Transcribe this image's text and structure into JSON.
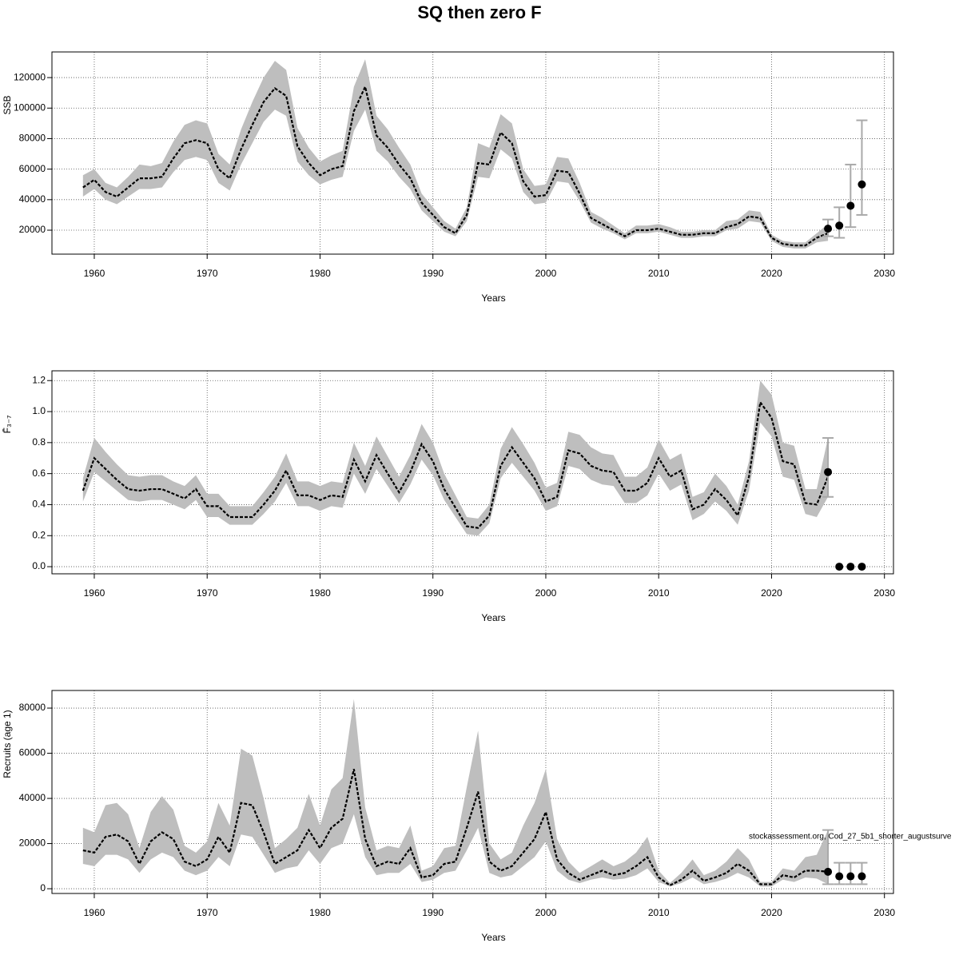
{
  "title": "SQ then zero F",
  "chart_data": [
    {
      "type": "line",
      "xlabel": "Years",
      "ylabel": "SSB",
      "grid": true,
      "color": "#000000",
      "band_color": "#bebebe",
      "errorbar_color": "#a9a9a9",
      "xlim": [
        1956.25,
        2030.8
      ],
      "xticks": [
        1960,
        1970,
        1980,
        1990,
        2000,
        2010,
        2020,
        2030
      ],
      "ylim": [
        4300,
        136800
      ],
      "yticks": [
        20000,
        40000,
        60000,
        80000,
        100000,
        120000
      ],
      "x": [
        1959,
        1960,
        1961,
        1962,
        1963,
        1964,
        1965,
        1966,
        1967,
        1968,
        1969,
        1970,
        1971,
        1972,
        1973,
        1974,
        1975,
        1976,
        1977,
        1978,
        1979,
        1980,
        1981,
        1982,
        1983,
        1984,
        1985,
        1986,
        1987,
        1988,
        1989,
        1990,
        1991,
        1992,
        1993,
        1994,
        1995,
        1996,
        1997,
        1998,
        1999,
        2000,
        2001,
        2002,
        2003,
        2004,
        2005,
        2006,
        2007,
        2008,
        2009,
        2010,
        2011,
        2012,
        2013,
        2014,
        2015,
        2016,
        2017,
        2018,
        2019,
        2020,
        2021,
        2022,
        2023,
        2024,
        2025
      ],
      "values": [
        48000,
        53000,
        45000,
        42000,
        48000,
        54000,
        54000,
        55000,
        67000,
        77000,
        79000,
        77000,
        60000,
        54000,
        73000,
        89000,
        104000,
        113000,
        108000,
        75000,
        64000,
        56000,
        60000,
        62000,
        98000,
        114000,
        82000,
        74000,
        63000,
        54000,
        38000,
        30000,
        22000,
        18000,
        30000,
        64000,
        63000,
        84000,
        77000,
        52000,
        42000,
        43000,
        59000,
        58000,
        44000,
        28000,
        24000,
        20000,
        16000,
        20000,
        20000,
        21000,
        19000,
        17000,
        17000,
        18000,
        18000,
        22000,
        24000,
        29000,
        28000,
        15000,
        11000,
        10000,
        10000,
        15000,
        18000
      ],
      "lower": [
        42000,
        47000,
        40000,
        37000,
        42000,
        47000,
        47000,
        48000,
        58000,
        66000,
        68000,
        66000,
        51000,
        46000,
        63000,
        77000,
        91000,
        99000,
        95000,
        65000,
        56000,
        50000,
        53000,
        55000,
        85000,
        99000,
        72000,
        65000,
        55000,
        47000,
        33000,
        26000,
        19000,
        16000,
        26000,
        55000,
        54000,
        73000,
        67000,
        45000,
        37000,
        38000,
        52000,
        51000,
        39000,
        25000,
        21000,
        18000,
        14000,
        18000,
        18000,
        19000,
        17000,
        15000,
        15000,
        16000,
        16000,
        20000,
        21000,
        26000,
        25000,
        13000,
        9000,
        8000,
        8000,
        12000,
        13000
      ],
      "upper": [
        56000,
        60000,
        51000,
        48000,
        55000,
        63000,
        62000,
        64000,
        78000,
        89000,
        92000,
        90000,
        70000,
        63000,
        86000,
        104000,
        120000,
        131000,
        125000,
        87000,
        74000,
        65000,
        69000,
        72000,
        114000,
        132000,
        95000,
        86000,
        74000,
        63000,
        44000,
        35000,
        26000,
        21000,
        35000,
        77000,
        74000,
        96000,
        90000,
        60000,
        49000,
        50000,
        68000,
        67000,
        51000,
        32000,
        28000,
        23000,
        18000,
        23000,
        23000,
        24000,
        22000,
        19000,
        19000,
        20000,
        20000,
        26000,
        27000,
        33000,
        32000,
        17000,
        13000,
        12000,
        12000,
        18000,
        24000
      ],
      "forecast": {
        "x": [
          2025,
          2026,
          2027,
          2028
        ],
        "values": [
          21000,
          23000,
          36000,
          50000
        ],
        "lower": [
          16000,
          15000,
          22000,
          30000
        ],
        "upper": [
          27000,
          35000,
          63000,
          92000
        ]
      }
    },
    {
      "type": "line",
      "xlabel": "Years",
      "ylabel": "F̄₃₋₇",
      "grid": true,
      "color": "#000000",
      "band_color": "#bebebe",
      "errorbar_color": "#a9a9a9",
      "xlim": [
        1956.25,
        2030.8
      ],
      "xticks": [
        1960,
        1970,
        1980,
        1990,
        2000,
        2010,
        2020,
        2030
      ],
      "ylim": [
        -0.046,
        1.263
      ],
      "yticks": [
        {
          "value": 0,
          "label": "0.0"
        },
        0.2,
        0.4,
        0.6,
        0.8,
        {
          "value": 1,
          "label": "1.0"
        },
        1.2
      ],
      "x": [
        1959,
        1960,
        1961,
        1962,
        1963,
        1964,
        1965,
        1966,
        1967,
        1968,
        1969,
        1970,
        1971,
        1972,
        1973,
        1974,
        1975,
        1976,
        1977,
        1978,
        1979,
        1980,
        1981,
        1982,
        1983,
        1984,
        1985,
        1986,
        1987,
        1988,
        1989,
        1990,
        1991,
        1992,
        1993,
        1994,
        1995,
        1996,
        1997,
        1998,
        1999,
        2000,
        2001,
        2002,
        2003,
        2004,
        2005,
        2006,
        2007,
        2008,
        2009,
        2010,
        2011,
        2012,
        2013,
        2014,
        2015,
        2016,
        2017,
        2018,
        2019,
        2020,
        2021,
        2022,
        2023,
        2024,
        2025
      ],
      "values": [
        0.49,
        0.7,
        0.63,
        0.56,
        0.5,
        0.49,
        0.5,
        0.5,
        0.47,
        0.44,
        0.5,
        0.39,
        0.39,
        0.32,
        0.32,
        0.32,
        0.4,
        0.49,
        0.62,
        0.46,
        0.46,
        0.43,
        0.46,
        0.45,
        0.69,
        0.55,
        0.72,
        0.6,
        0.48,
        0.61,
        0.79,
        0.68,
        0.5,
        0.38,
        0.26,
        0.25,
        0.33,
        0.65,
        0.77,
        0.67,
        0.57,
        0.42,
        0.45,
        0.75,
        0.73,
        0.65,
        0.62,
        0.61,
        0.49,
        0.49,
        0.54,
        0.7,
        0.58,
        0.62,
        0.37,
        0.4,
        0.5,
        0.43,
        0.33,
        0.58,
        1.06,
        0.96,
        0.68,
        0.66,
        0.41,
        0.4,
        0.58
      ],
      "lower": [
        0.42,
        0.61,
        0.55,
        0.49,
        0.43,
        0.42,
        0.43,
        0.43,
        0.4,
        0.37,
        0.43,
        0.32,
        0.32,
        0.27,
        0.27,
        0.27,
        0.34,
        0.42,
        0.54,
        0.39,
        0.39,
        0.36,
        0.39,
        0.38,
        0.6,
        0.47,
        0.63,
        0.52,
        0.41,
        0.53,
        0.69,
        0.59,
        0.43,
        0.32,
        0.21,
        0.2,
        0.28,
        0.57,
        0.67,
        0.58,
        0.49,
        0.36,
        0.39,
        0.65,
        0.63,
        0.56,
        0.53,
        0.52,
        0.41,
        0.41,
        0.46,
        0.6,
        0.49,
        0.53,
        0.3,
        0.34,
        0.42,
        0.36,
        0.27,
        0.49,
        0.93,
        0.84,
        0.58,
        0.56,
        0.34,
        0.32,
        0.45
      ],
      "upper": [
        0.57,
        0.83,
        0.74,
        0.66,
        0.59,
        0.58,
        0.59,
        0.59,
        0.55,
        0.52,
        0.59,
        0.47,
        0.47,
        0.39,
        0.39,
        0.39,
        0.48,
        0.58,
        0.73,
        0.55,
        0.55,
        0.52,
        0.55,
        0.54,
        0.8,
        0.65,
        0.84,
        0.71,
        0.58,
        0.72,
        0.92,
        0.8,
        0.6,
        0.46,
        0.32,
        0.31,
        0.4,
        0.76,
        0.9,
        0.79,
        0.67,
        0.51,
        0.54,
        0.87,
        0.85,
        0.77,
        0.73,
        0.72,
        0.58,
        0.58,
        0.64,
        0.82,
        0.69,
        0.73,
        0.45,
        0.48,
        0.6,
        0.52,
        0.4,
        0.68,
        1.2,
        1.11,
        0.8,
        0.78,
        0.5,
        0.5,
        0.83
      ],
      "forecast": {
        "x": [
          2025,
          2026,
          2027,
          2028
        ],
        "values": [
          0.61,
          0,
          0,
          0
        ],
        "lower": [
          0.45,
          null,
          null,
          null
        ],
        "upper": [
          0.83,
          null,
          null,
          null
        ]
      }
    },
    {
      "type": "line",
      "xlabel": "Years",
      "ylabel": "Recruits (age 1)",
      "grid": true,
      "color": "#000000",
      "band_color": "#bebebe",
      "errorbar_color": "#a9a9a9",
      "annotation": "stockassessment.org, Cod_27_5b1_shorter_augustsurve",
      "xlim": [
        1956.25,
        2030.8
      ],
      "xticks": [
        1960,
        1970,
        1980,
        1990,
        2000,
        2010,
        2020,
        2030
      ],
      "ylim": [
        -2100,
        87800
      ],
      "yticks": [
        0,
        20000,
        40000,
        60000,
        80000
      ],
      "x": [
        1959,
        1960,
        1961,
        1962,
        1963,
        1964,
        1965,
        1966,
        1967,
        1968,
        1969,
        1970,
        1971,
        1972,
        1973,
        1974,
        1975,
        1976,
        1977,
        1978,
        1979,
        1980,
        1981,
        1982,
        1983,
        1984,
        1985,
        1986,
        1987,
        1988,
        1989,
        1990,
        1991,
        1992,
        1993,
        1994,
        1995,
        1996,
        1997,
        1998,
        1999,
        2000,
        2001,
        2002,
        2003,
        2004,
        2005,
        2006,
        2007,
        2008,
        2009,
        2010,
        2011,
        2012,
        2013,
        2014,
        2015,
        2016,
        2017,
        2018,
        2019,
        2020,
        2021,
        2022,
        2023,
        2024,
        2025
      ],
      "values": [
        17000,
        16000,
        23000,
        24000,
        21000,
        11000,
        21000,
        25000,
        22000,
        12000,
        10000,
        13000,
        23000,
        16000,
        38000,
        37000,
        25000,
        11000,
        14000,
        17000,
        26000,
        18000,
        27000,
        31000,
        53000,
        22000,
        10000,
        12000,
        11000,
        18000,
        5000,
        6000,
        11000,
        12000,
        27000,
        43000,
        12000,
        8000,
        10000,
        16000,
        22000,
        34000,
        13000,
        7000,
        4000,
        6000,
        8000,
        6000,
        7000,
        10000,
        14000,
        5000,
        1500,
        4000,
        8000,
        3500,
        5000,
        7000,
        11000,
        8000,
        2000,
        2000,
        6000,
        5000,
        8000,
        8000,
        7500
      ],
      "lower": [
        11000,
        10000,
        15000,
        15000,
        13000,
        7000,
        13000,
        16000,
        14000,
        8000,
        6000,
        8000,
        14000,
        10000,
        24000,
        23000,
        15000,
        7000,
        9000,
        10000,
        17000,
        11000,
        18000,
        20000,
        33000,
        14000,
        6000,
        7000,
        7000,
        11000,
        3000,
        4000,
        7000,
        8000,
        17000,
        27000,
        7000,
        5000,
        6000,
        10000,
        14000,
        21000,
        8000,
        4000,
        2500,
        4000,
        5000,
        4000,
        4500,
        6000,
        9000,
        3000,
        1000,
        2500,
        5000,
        2000,
        3000,
        4500,
        7000,
        5000,
        1000,
        1000,
        4000,
        3000,
        5000,
        4500,
        2000
      ],
      "upper": [
        27000,
        25000,
        37000,
        38000,
        33000,
        18000,
        34000,
        41000,
        35000,
        19000,
        16000,
        21000,
        38000,
        28000,
        62000,
        59000,
        40000,
        18000,
        22000,
        27000,
        42000,
        28000,
        44000,
        49000,
        84000,
        36000,
        17000,
        19000,
        18000,
        28000,
        8000,
        10000,
        18000,
        19000,
        45000,
        70000,
        20000,
        13000,
        16000,
        28000,
        38000,
        53000,
        22000,
        12000,
        7000,
        10000,
        13000,
        10000,
        12000,
        16000,
        23000,
        8000,
        2500,
        7000,
        13000,
        6000,
        8000,
        12000,
        18000,
        13000,
        3000,
        3000,
        9000,
        8000,
        14000,
        15000,
        26000
      ],
      "forecast": {
        "x": [
          2025,
          2026,
          2027,
          2028
        ],
        "values": [
          7500,
          5500,
          5500,
          5500
        ],
        "lower": [
          2000,
          2000,
          2000,
          2000
        ],
        "upper": [
          26000,
          11500,
          11500,
          11500
        ]
      }
    }
  ]
}
